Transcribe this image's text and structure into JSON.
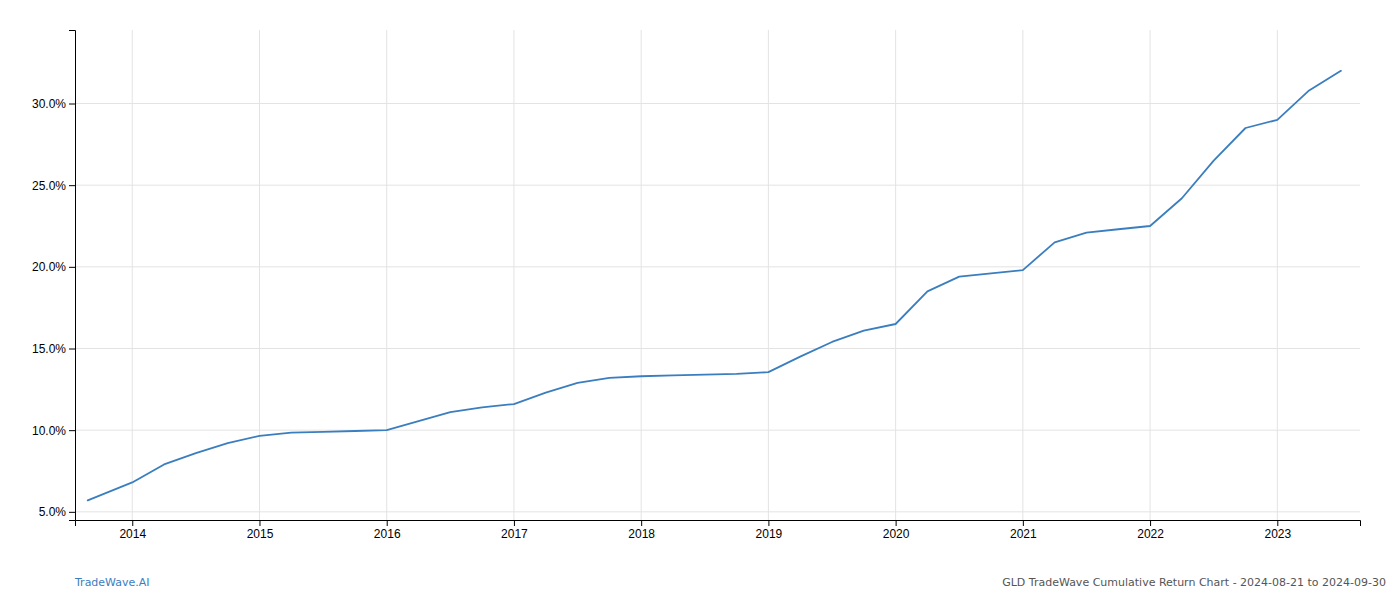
{
  "chart_data": {
    "type": "line",
    "x": [
      2013.65,
      2014.0,
      2014.25,
      2014.5,
      2014.75,
      2015.0,
      2015.25,
      2015.5,
      2015.75,
      2016.0,
      2016.25,
      2016.5,
      2016.75,
      2017.0,
      2017.25,
      2017.5,
      2017.75,
      2018.0,
      2018.25,
      2018.5,
      2018.75,
      2019.0,
      2019.25,
      2019.5,
      2019.75,
      2020.0,
      2020.25,
      2020.5,
      2020.75,
      2021.0,
      2021.25,
      2021.5,
      2021.75,
      2022.0,
      2022.25,
      2022.5,
      2022.75,
      2023.0,
      2023.25,
      2023.5
    ],
    "values": [
      5.7,
      6.8,
      7.9,
      8.6,
      9.2,
      9.65,
      9.85,
      9.9,
      9.95,
      10.0,
      10.55,
      11.1,
      11.4,
      11.6,
      12.3,
      12.9,
      13.2,
      13.3,
      13.35,
      13.4,
      13.45,
      13.55,
      14.5,
      15.4,
      16.1,
      16.5,
      18.5,
      19.4,
      19.6,
      19.8,
      21.5,
      22.1,
      22.3,
      22.5,
      24.2,
      26.5,
      28.5,
      29.0,
      30.8,
      32.0
    ],
    "color": "#3a7ebf",
    "xlim": [
      2013.55,
      2023.65
    ],
    "ylim": [
      4.5,
      34.5
    ],
    "xticks": [
      2014,
      2015,
      2016,
      2017,
      2018,
      2019,
      2020,
      2021,
      2022,
      2023
    ],
    "yticks": [
      {
        "value": 5.0,
        "label": "5.0%"
      },
      {
        "value": 10.0,
        "label": "10.0%"
      },
      {
        "value": 15.0,
        "label": "15.0%"
      },
      {
        "value": 20.0,
        "label": "20.0%"
      },
      {
        "value": 25.0,
        "label": "25.0%"
      },
      {
        "value": 30.0,
        "label": "30.0%"
      }
    ],
    "grid": true,
    "annotations": [
      "TradeWave.AI",
      "GLD TradeWave Cumulative Return Chart - 2024-08-21 to 2024-09-30"
    ]
  }
}
